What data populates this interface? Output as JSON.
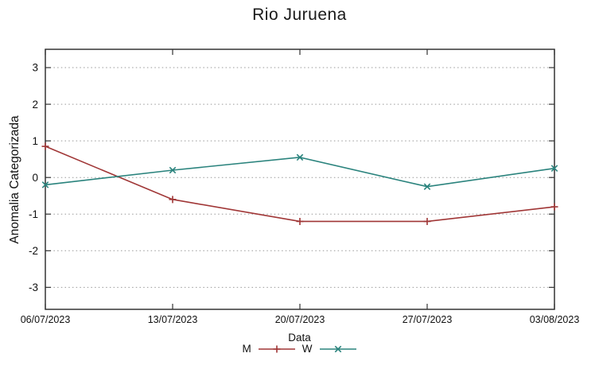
{
  "chart_data": {
    "type": "line",
    "title": "Rio Juruena",
    "xlabel": "Data",
    "ylabel": "Anomalia Categorizada",
    "categories": [
      "06/07/2023",
      "13/07/2023",
      "20/07/2023",
      "27/07/2023",
      "03/08/2023"
    ],
    "y_ticks": [
      -3,
      -2,
      -1,
      0,
      1,
      2,
      3
    ],
    "ylim": [
      -3.6,
      3.5
    ],
    "grid": "horizontal-dotted",
    "legend_position": "bottom-center",
    "series": [
      {
        "name": "M",
        "color": "#a03636",
        "marker": "plus",
        "values": [
          0.85,
          -0.6,
          -1.2,
          -1.2,
          -0.8
        ]
      },
      {
        "name": "W",
        "color": "#2a837d",
        "marker": "cross",
        "values": [
          -0.2,
          0.2,
          0.55,
          -0.25,
          0.25
        ]
      }
    ]
  },
  "colors": {
    "frame": "#333333",
    "grid": "#999999",
    "text": "#111111"
  }
}
